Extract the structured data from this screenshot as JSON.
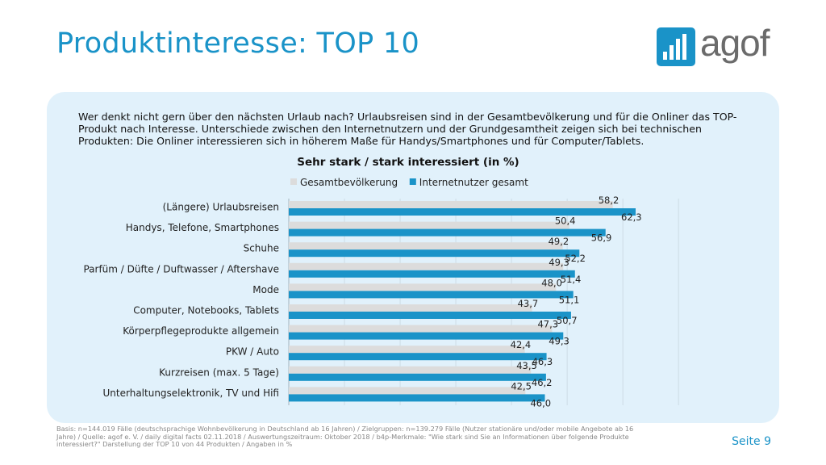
{
  "title": "Produktinteresse: TOP 10",
  "logo": {
    "text": "agof"
  },
  "intro": "Wer denkt nicht gern über den nächsten Urlaub nach? Urlaubsreisen sind in der Gesamtbevölkerung und für die Onliner das TOP-Produkt nach Interesse. Unterschiede zwischen den Internetnutzern und der Grundgesamtheit zeigen sich bei technischen Produkten: Die Onliner interessieren sich in höherem Maße für Handys/Smartphones und für Computer/Tablets.",
  "chart_data": {
    "type": "bar",
    "orientation": "horizontal",
    "title": "Sehr stark / stark interessiert (in %)",
    "legend_position": "top",
    "grid": true,
    "xlim": [
      0,
      70
    ],
    "categories": [
      "(Längere) Urlaubsreisen",
      "Handys, Telefone, Smartphones",
      "Schuhe",
      "Parfüm / Düfte / Duftwasser / Aftershave",
      "Mode",
      "Computer, Notebooks, Tablets",
      "Körperpflegeprodukte allgemein",
      "PKW / Auto",
      "Kurzreisen (max. 5 Tage)",
      "Unterhaltungselektronik, TV und Hifi"
    ],
    "series": [
      {
        "name": "Gesamtbevölkerung",
        "color": "#dcdcdc",
        "values": [
          58.2,
          50.4,
          49.2,
          49.3,
          48.0,
          43.7,
          47.3,
          42.4,
          43.5,
          42.5
        ],
        "labels": [
          "58,2",
          "50,4",
          "49,2",
          "49,3",
          "48,0",
          "43,7",
          "47,3",
          "42,4",
          "43,5",
          "42,5"
        ]
      },
      {
        "name": "Internetnutzer gesamt",
        "color": "#1a93c8",
        "values": [
          62.3,
          56.9,
          52.2,
          51.4,
          51.1,
          50.7,
          49.3,
          46.3,
          46.2,
          46.0
        ],
        "labels": [
          "62,3",
          "56,9",
          "52,2",
          "51,4",
          "51,1",
          "50,7",
          "49,3",
          "46,3",
          "46,2",
          "46,0"
        ]
      }
    ]
  },
  "footnote": "Basis: n=144.019 Fälle (deutschsprachige Wohnbevölkerung in Deutschland ab 16 Jahren) / Zielgruppen: n=139.279 Fälle (Nutzer stationäre und/oder mobile Angebote ab 16 Jahre) / Quelle: agof e. V. / daily digital facts 02.11.2018 / Auswertungszeitraum: Oktober 2018 / b4p-Merkmale: \"Wie stark sind Sie an Informationen über folgende Produkte interessiert?\" Darstellung der TOP 10 von 44 Produkten / Angaben in %",
  "page_number": "Seite 9"
}
